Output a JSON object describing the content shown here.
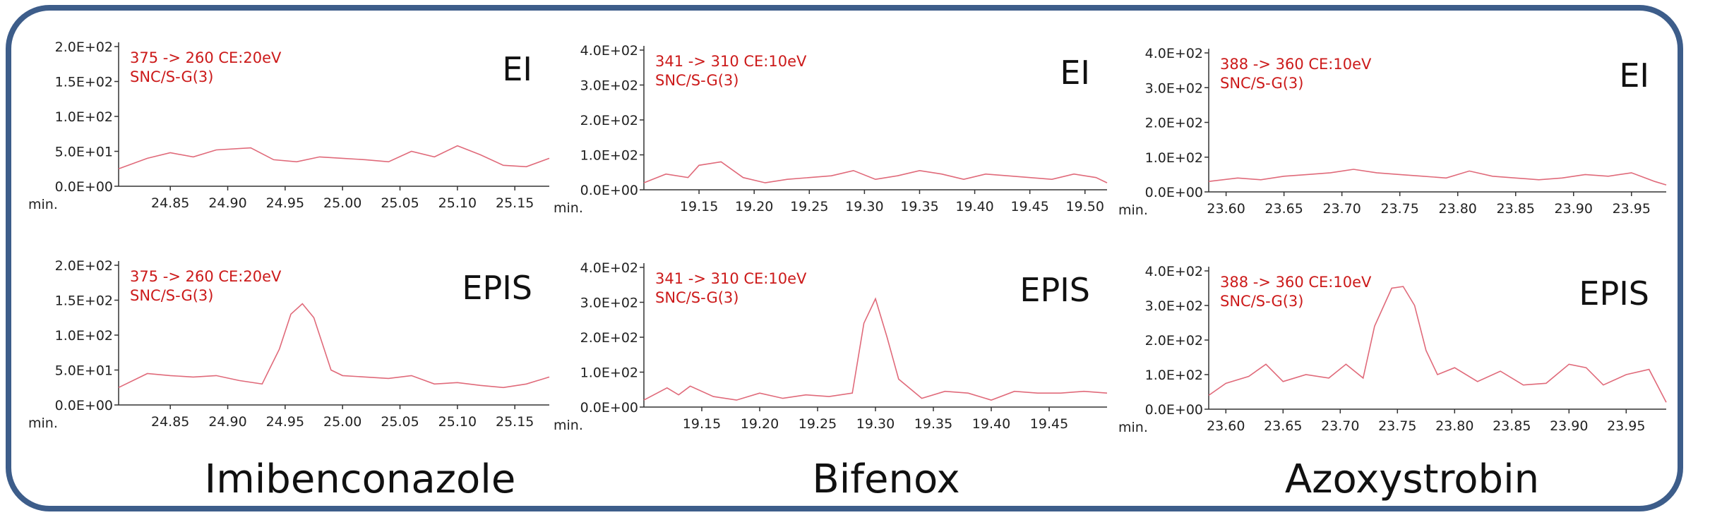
{
  "colors": {
    "frame": "#3d5d8a",
    "trace": "#e06a7a",
    "annotation": "#cc1a1a",
    "axis": "#333333"
  },
  "compounds": [
    "Imibenconazole",
    "Bifenox",
    "Azoxystrobin"
  ],
  "chart_data": [
    {
      "type": "line",
      "compound": "Imibenconazole",
      "mode": "EI",
      "annotation": [
        "375 -> 260 CE:20eV",
        "SNC/S-G(3)"
      ],
      "xlabel": "min.",
      "xlim": [
        24.805,
        25.18
      ],
      "ylim": [
        0,
        200
      ],
      "xticks": [
        "24.85",
        "24.90",
        "24.95",
        "25.00",
        "25.05",
        "25.10",
        "25.15"
      ],
      "yticks": [
        "0.0E+00",
        "5.0E+01",
        "1.0E+02",
        "1.5E+02",
        "2.0E+02"
      ],
      "x": [
        24.805,
        24.83,
        24.85,
        24.87,
        24.89,
        24.92,
        24.94,
        24.96,
        24.98,
        25.0,
        25.02,
        25.04,
        25.06,
        25.08,
        25.1,
        25.12,
        25.14,
        25.16,
        25.18
      ],
      "y": [
        25,
        40,
        48,
        42,
        52,
        55,
        38,
        35,
        42,
        40,
        38,
        35,
        50,
        42,
        58,
        45,
        30,
        28,
        40
      ]
    },
    {
      "type": "line",
      "compound": "Bifenox",
      "mode": "EI",
      "annotation": [
        "341 -> 310 CE:10eV",
        "SNC/S-G(3)"
      ],
      "xlabel": "min.",
      "xlim": [
        19.1,
        19.52
      ],
      "ylim": [
        0,
        400
      ],
      "xticks": [
        "19.15",
        "19.20",
        "19.25",
        "19.30",
        "19.35",
        "19.40",
        "19.45",
        "19.50"
      ],
      "yticks": [
        "0.0E+00",
        "1.0E+02",
        "2.0E+02",
        "3.0E+02",
        "4.0E+02"
      ],
      "x": [
        19.1,
        19.12,
        19.14,
        19.15,
        19.17,
        19.19,
        19.21,
        19.23,
        19.25,
        19.27,
        19.29,
        19.31,
        19.33,
        19.35,
        19.37,
        19.39,
        19.41,
        19.43,
        19.45,
        19.47,
        19.49,
        19.51,
        19.52
      ],
      "y": [
        20,
        45,
        35,
        70,
        80,
        35,
        20,
        30,
        35,
        40,
        55,
        30,
        40,
        55,
        45,
        30,
        45,
        40,
        35,
        30,
        45,
        35,
        20
      ]
    },
    {
      "type": "line",
      "compound": "Azoxystrobin",
      "mode": "EI",
      "annotation": [
        "388 -> 360 CE:10eV",
        "SNC/S-G(3)"
      ],
      "xlabel": "min.",
      "xlim": [
        23.585,
        23.98
      ],
      "ylim": [
        0,
        400
      ],
      "xticks": [
        "23.60",
        "23.65",
        "23.70",
        "23.75",
        "23.80",
        "23.85",
        "23.90",
        "23.95"
      ],
      "yticks": [
        "0.0E+00",
        "1.0E+02",
        "2.0E+02",
        "3.0E+02",
        "4.0E+02"
      ],
      "x": [
        23.585,
        23.61,
        23.63,
        23.65,
        23.67,
        23.69,
        23.71,
        23.73,
        23.75,
        23.77,
        23.79,
        23.81,
        23.83,
        23.85,
        23.87,
        23.89,
        23.91,
        23.93,
        23.95,
        23.97,
        23.98
      ],
      "y": [
        30,
        40,
        35,
        45,
        50,
        55,
        65,
        55,
        50,
        45,
        40,
        60,
        45,
        40,
        35,
        40,
        50,
        45,
        55,
        30,
        20
      ]
    },
    {
      "type": "line",
      "compound": "Imibenconazole",
      "mode": "EPIS",
      "annotation": [
        "375 -> 260 CE:20eV",
        "SNC/S-G(3)"
      ],
      "xlabel": "min.",
      "xlim": [
        24.805,
        25.18
      ],
      "ylim": [
        0,
        200
      ],
      "xticks": [
        "24.85",
        "24.90",
        "24.95",
        "25.00",
        "25.05",
        "25.10",
        "25.15"
      ],
      "yticks": [
        "0.0E+00",
        "5.0E+01",
        "1.0E+02",
        "1.5E+02",
        "2.0E+02"
      ],
      "x": [
        24.805,
        24.83,
        24.85,
        24.87,
        24.89,
        24.91,
        24.93,
        24.945,
        24.955,
        24.965,
        24.975,
        24.99,
        25.0,
        25.02,
        25.04,
        25.06,
        25.08,
        25.1,
        25.12,
        25.14,
        25.16,
        25.18
      ],
      "y": [
        25,
        45,
        42,
        40,
        42,
        35,
        30,
        80,
        130,
        145,
        125,
        50,
        42,
        40,
        38,
        42,
        30,
        32,
        28,
        25,
        30,
        40
      ]
    },
    {
      "type": "line",
      "compound": "Bifenox",
      "mode": "EPIS",
      "annotation": [
        "341 -> 310 CE:10eV",
        "SNC/S-G(3)"
      ],
      "xlabel": "min.",
      "xlim": [
        19.1,
        19.5
      ],
      "ylim": [
        0,
        400
      ],
      "xticks": [
        "19.15",
        "19.20",
        "19.25",
        "19.30",
        "19.35",
        "19.40",
        "19.45"
      ],
      "yticks": [
        "0.0E+00",
        "1.0E+02",
        "2.0E+02",
        "3.0E+02",
        "4.0E+02"
      ],
      "x": [
        19.1,
        19.12,
        19.13,
        19.14,
        19.16,
        19.18,
        19.2,
        19.22,
        19.24,
        19.26,
        19.28,
        19.29,
        19.3,
        19.31,
        19.32,
        19.34,
        19.36,
        19.38,
        19.4,
        19.42,
        19.44,
        19.46,
        19.48,
        19.5
      ],
      "y": [
        20,
        55,
        35,
        60,
        30,
        20,
        40,
        25,
        35,
        30,
        40,
        240,
        310,
        200,
        80,
        25,
        45,
        40,
        20,
        45,
        40,
        40,
        45,
        40
      ]
    },
    {
      "type": "line",
      "compound": "Azoxystrobin",
      "mode": "EPIS",
      "annotation": [
        "388 -> 360 CE:10eV",
        "SNC/S-G(3)"
      ],
      "xlabel": "min.",
      "xlim": [
        23.585,
        23.985
      ],
      "ylim": [
        0,
        400
      ],
      "xticks": [
        "23.60",
        "23.65",
        "23.70",
        "23.75",
        "23.80",
        "23.85",
        "23.90",
        "23.95"
      ],
      "yticks": [
        "0.0E+00",
        "1.0E+02",
        "2.0E+02",
        "3.0E+02",
        "4.0E+02"
      ],
      "x": [
        23.585,
        23.6,
        23.62,
        23.635,
        23.65,
        23.67,
        23.69,
        23.705,
        23.72,
        23.73,
        23.745,
        23.755,
        23.765,
        23.775,
        23.785,
        23.8,
        23.82,
        23.84,
        23.86,
        23.88,
        23.9,
        23.915,
        23.93,
        23.95,
        23.97,
        23.985
      ],
      "y": [
        40,
        75,
        95,
        130,
        80,
        100,
        90,
        130,
        90,
        240,
        350,
        355,
        300,
        170,
        100,
        120,
        80,
        110,
        70,
        75,
        130,
        120,
        70,
        100,
        115,
        20
      ]
    }
  ]
}
